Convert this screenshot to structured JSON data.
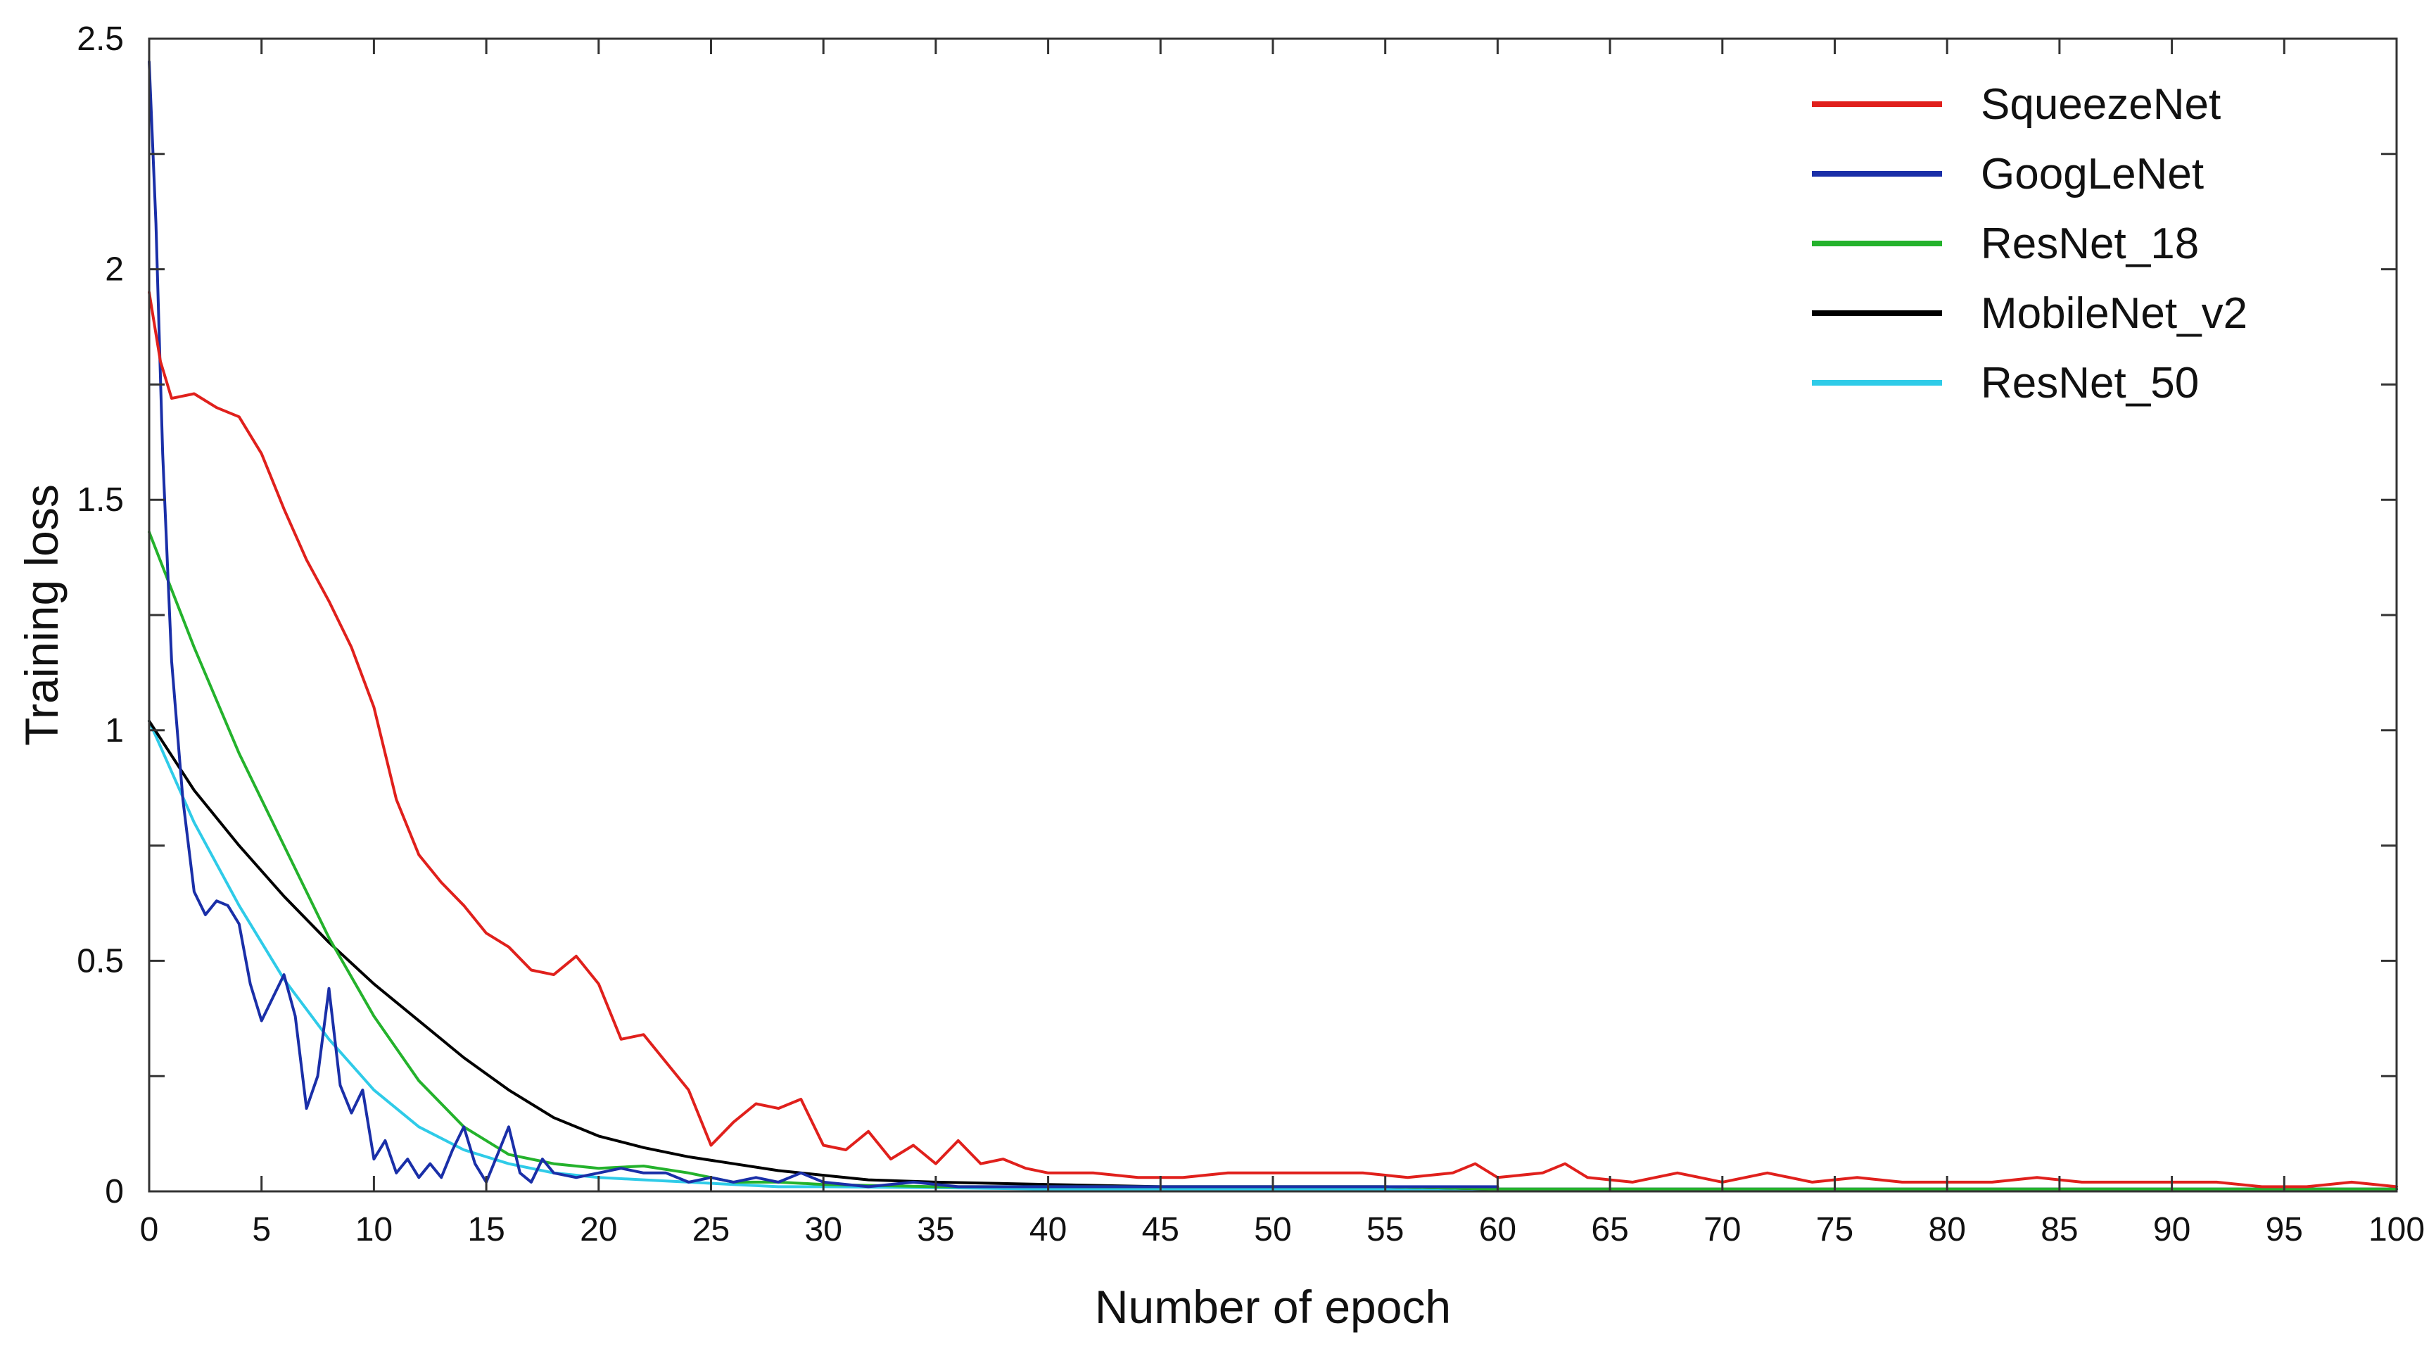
{
  "chart_data": {
    "type": "line",
    "title": "",
    "xlabel": "Number of epoch",
    "ylabel": "Training loss",
    "xlim": [
      0,
      100
    ],
    "ylim": [
      0,
      2.5
    ],
    "xticks": [
      0,
      5,
      10,
      15,
      20,
      25,
      30,
      35,
      40,
      45,
      50,
      55,
      60,
      65,
      70,
      75,
      80,
      85,
      90,
      95,
      100
    ],
    "xtick_labels": [
      "0",
      "5",
      "10",
      "15",
      "20",
      "25",
      "30",
      "35",
      "40",
      "45",
      "50",
      "55",
      "60",
      "65",
      "70",
      "75",
      "80",
      "85",
      "90",
      "95",
      "100"
    ],
    "yticks": [
      0,
      0.5,
      1,
      1.5,
      2,
      2.5
    ],
    "ytick_labels": [
      "0",
      "0.5",
      "1",
      "1.5",
      "2",
      "2.5"
    ],
    "grid": false,
    "legend_position": "top-right",
    "series": [
      {
        "name": "SqueezeNet",
        "color": "#e0201c",
        "x": [
          0,
          0.5,
          1,
          2,
          3,
          4,
          5,
          6,
          7,
          8,
          9,
          10,
          11,
          12,
          13,
          14,
          15,
          16,
          17,
          18,
          19,
          20,
          21,
          22,
          23,
          24,
          25,
          26,
          27,
          28,
          29,
          30,
          31,
          32,
          33,
          34,
          35,
          36,
          37,
          38,
          39,
          40,
          42,
          44,
          46,
          48,
          50,
          52,
          54,
          56,
          58,
          59,
          60,
          62,
          63,
          64,
          66,
          68,
          70,
          72,
          74,
          76,
          78,
          80,
          82,
          84,
          86,
          88,
          90,
          92,
          94,
          95,
          96,
          98,
          100
        ],
        "y": [
          1.95,
          1.8,
          1.72,
          1.73,
          1.7,
          1.68,
          1.6,
          1.48,
          1.37,
          1.28,
          1.18,
          1.05,
          0.85,
          0.73,
          0.67,
          0.62,
          0.56,
          0.53,
          0.48,
          0.47,
          0.51,
          0.45,
          0.33,
          0.34,
          0.28,
          0.22,
          0.1,
          0.15,
          0.19,
          0.18,
          0.2,
          0.1,
          0.09,
          0.13,
          0.07,
          0.1,
          0.06,
          0.11,
          0.06,
          0.07,
          0.05,
          0.04,
          0.04,
          0.03,
          0.03,
          0.04,
          0.04,
          0.04,
          0.04,
          0.03,
          0.04,
          0.06,
          0.03,
          0.04,
          0.06,
          0.03,
          0.02,
          0.04,
          0.02,
          0.04,
          0.02,
          0.03,
          0.02,
          0.02,
          0.02,
          0.03,
          0.02,
          0.02,
          0.02,
          0.02,
          0.01,
          0.01,
          0.01,
          0.02,
          0.01
        ]
      },
      {
        "name": "GoogLeNet",
        "color": "#1a2fa8",
        "x": [
          0,
          0.3,
          0.6,
          1,
          1.5,
          2,
          2.5,
          3,
          3.5,
          4,
          4.5,
          5,
          5.5,
          6,
          6.5,
          7,
          7.5,
          8,
          8.5,
          9,
          9.5,
          10,
          10.5,
          11,
          11.5,
          12,
          12.5,
          13,
          13.5,
          14,
          14.5,
          15,
          15.5,
          16,
          16.5,
          17,
          17.5,
          18,
          19,
          20,
          21,
          22,
          23,
          24,
          25,
          26,
          27,
          28,
          29,
          30,
          32,
          34,
          36,
          38,
          40,
          45,
          50,
          55,
          60
        ],
        "y": [
          2.45,
          2.1,
          1.6,
          1.15,
          0.85,
          0.65,
          0.6,
          0.63,
          0.62,
          0.58,
          0.45,
          0.37,
          0.42,
          0.47,
          0.38,
          0.18,
          0.25,
          0.44,
          0.23,
          0.17,
          0.22,
          0.07,
          0.11,
          0.04,
          0.07,
          0.03,
          0.06,
          0.03,
          0.09,
          0.14,
          0.06,
          0.02,
          0.08,
          0.14,
          0.04,
          0.02,
          0.07,
          0.04,
          0.03,
          0.04,
          0.05,
          0.04,
          0.04,
          0.02,
          0.03,
          0.02,
          0.03,
          0.02,
          0.04,
          0.02,
          0.01,
          0.02,
          0.01,
          0.01,
          0.01,
          0.01,
          0.01,
          0.01,
          0.01
        ]
      },
      {
        "name": "ResNet_18",
        "color": "#24b22c",
        "x": [
          0,
          2,
          4,
          6,
          8,
          10,
          12,
          14,
          16,
          18,
          20,
          22,
          24,
          26,
          28,
          30,
          35,
          40,
          45,
          50,
          55,
          60,
          70,
          80,
          90,
          100
        ],
        "y": [
          1.43,
          1.18,
          0.95,
          0.75,
          0.55,
          0.38,
          0.24,
          0.14,
          0.08,
          0.06,
          0.05,
          0.055,
          0.04,
          0.02,
          0.02,
          0.015,
          0.01,
          0.01,
          0.01,
          0.01,
          0.01,
          0.005,
          0.005,
          0.005,
          0.005,
          0.005
        ]
      },
      {
        "name": "MobileNet_v2",
        "color": "#000000",
        "x": [
          0,
          2,
          4,
          6,
          8,
          10,
          12,
          14,
          16,
          18,
          20,
          22,
          24,
          26,
          28,
          30,
          32,
          35,
          40,
          45,
          50,
          55,
          60,
          70,
          80,
          90,
          100
        ],
        "y": [
          1.02,
          0.87,
          0.75,
          0.64,
          0.54,
          0.45,
          0.37,
          0.29,
          0.22,
          0.16,
          0.12,
          0.095,
          0.075,
          0.06,
          0.045,
          0.035,
          0.025,
          0.02,
          0.015,
          0.01,
          0.01,
          0.01,
          0.005,
          0.005,
          0.005,
          0.005,
          0.005
        ]
      },
      {
        "name": "ResNet_50",
        "color": "#2fcbe8",
        "x": [
          0,
          2,
          4,
          6,
          8,
          10,
          12,
          14,
          16,
          18,
          20,
          22,
          24,
          26,
          28,
          30,
          35,
          40,
          45,
          50,
          60,
          70,
          80,
          90,
          100
        ],
        "y": [
          1.02,
          0.8,
          0.62,
          0.46,
          0.33,
          0.22,
          0.14,
          0.09,
          0.06,
          0.04,
          0.03,
          0.025,
          0.02,
          0.015,
          0.01,
          0.01,
          0.008,
          0.005,
          0.005,
          0.005,
          0.005,
          0.005,
          0.005,
          0.005,
          0.005
        ]
      }
    ]
  }
}
